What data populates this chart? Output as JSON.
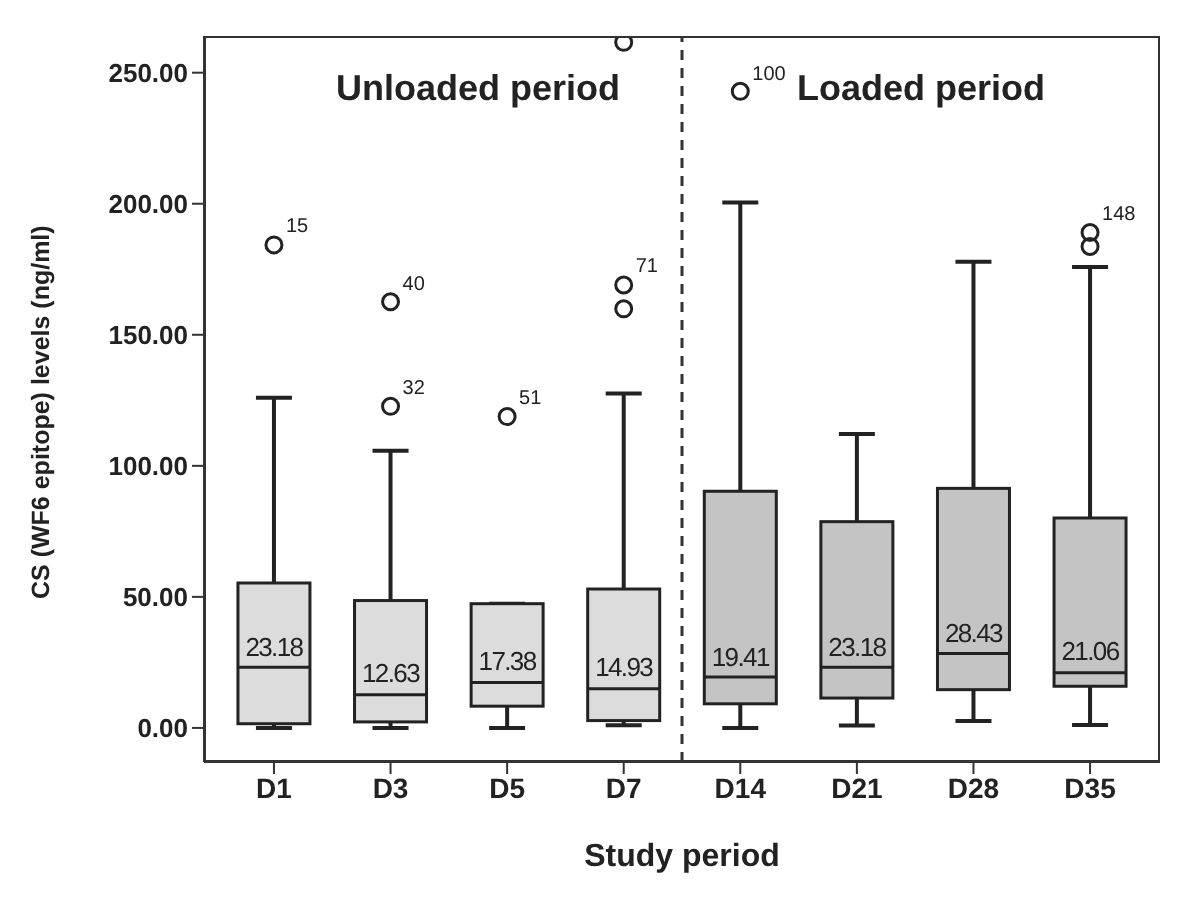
{
  "chart_data": {
    "type": "box",
    "xlabel": "Study period",
    "ylabel": "CS (WF6 epitope) levels (ng/ml)",
    "categories": [
      "D1",
      "D3",
      "D5",
      "D7",
      "D14",
      "D21",
      "D28",
      "D35"
    ],
    "boxes": [
      {
        "low": 0,
        "q1": 1.6,
        "median": 23.18,
        "q3": 55.3,
        "high": 126
      },
      {
        "low": 0,
        "q1": 2.3,
        "median": 12.63,
        "q3": 48.6,
        "high": 105.8
      },
      {
        "low": 0,
        "q1": 8.3,
        "median": 17.38,
        "q3": 47.4,
        "high": 47.4
      },
      {
        "low": 1,
        "q1": 2.8,
        "median": 14.93,
        "q3": 53,
        "high": 127.6
      },
      {
        "low": 0,
        "q1": 9.2,
        "median": 19.41,
        "q3": 90.3,
        "high": 200.5
      },
      {
        "low": 0.9,
        "q1": 11.4,
        "median": 23.18,
        "q3": 78.7,
        "high": 112.1
      },
      {
        "low": 2.6,
        "q1": 14.6,
        "median": 28.43,
        "q3": 91.4,
        "high": 177.9
      },
      {
        "low": 1.1,
        "q1": 15.9,
        "median": 21.06,
        "q3": 80.1,
        "high": 175.9
      }
    ],
    "colors": [
      "#dcdcdc",
      "#dcdcdc",
      "#dcdcdc",
      "#dcdcdc",
      "#c4c4c4",
      "#c4c4c4",
      "#c4c4c4",
      "#c4c4c4"
    ],
    "series": [
      {
        "type": "scatter",
        "color": "#222222",
        "marker": "circle",
        "x": [
          "D1",
          "D3",
          "D3",
          "D5",
          "D7",
          "D7",
          "D7",
          "D14",
          "D35",
          "D35"
        ],
        "values": [
          184.3,
          162.6,
          122.7,
          118.8,
          169,
          159.9,
          261.6,
          242.9,
          189,
          183.7
        ]
      }
    ],
    "ylim": [
      -13,
      264
    ],
    "yticks": [
      {
        "value": 0,
        "label": "0.00"
      },
      {
        "value": 50,
        "label": "50.00"
      },
      {
        "value": 100,
        "label": "100.00"
      },
      {
        "value": 150,
        "label": "150.00"
      },
      {
        "value": 200,
        "label": "200.00"
      },
      {
        "value": 250,
        "label": "250.00"
      }
    ],
    "annotations": [
      "Unloaded period",
      "Loaded period",
      {
        "text": "23.18",
        "x": "D1",
        "y": 23.18
      },
      {
        "text": "12.63",
        "x": "D3",
        "y": 12.63
      },
      {
        "text": "17.38",
        "x": "D5",
        "y": 17.38
      },
      {
        "text": "14.93",
        "x": "D7",
        "y": 14.93
      },
      {
        "text": "19.41",
        "x": "D14",
        "y": 19.41
      },
      {
        "text": "23.18",
        "x": "D21",
        "y": 23.18
      },
      {
        "text": "28.43",
        "x": "D28",
        "y": 28.43
      },
      {
        "text": "21.06",
        "x": "D35",
        "y": 21.06
      },
      {
        "text": "15",
        "x": "D1",
        "y": 184.3
      },
      {
        "text": "40",
        "x": "D3",
        "y": 162.6
      },
      {
        "text": "32",
        "x": "D3",
        "y": 122.7
      },
      {
        "text": "51",
        "x": "D5",
        "y": 118.8
      },
      {
        "text": "71",
        "x": "D7",
        "y": 169
      },
      {
        "text": "100",
        "x": "D14",
        "y": 242.9
      },
      {
        "text": "148",
        "x": "D35",
        "y": 189
      }
    ],
    "grid": false,
    "legend": false
  }
}
